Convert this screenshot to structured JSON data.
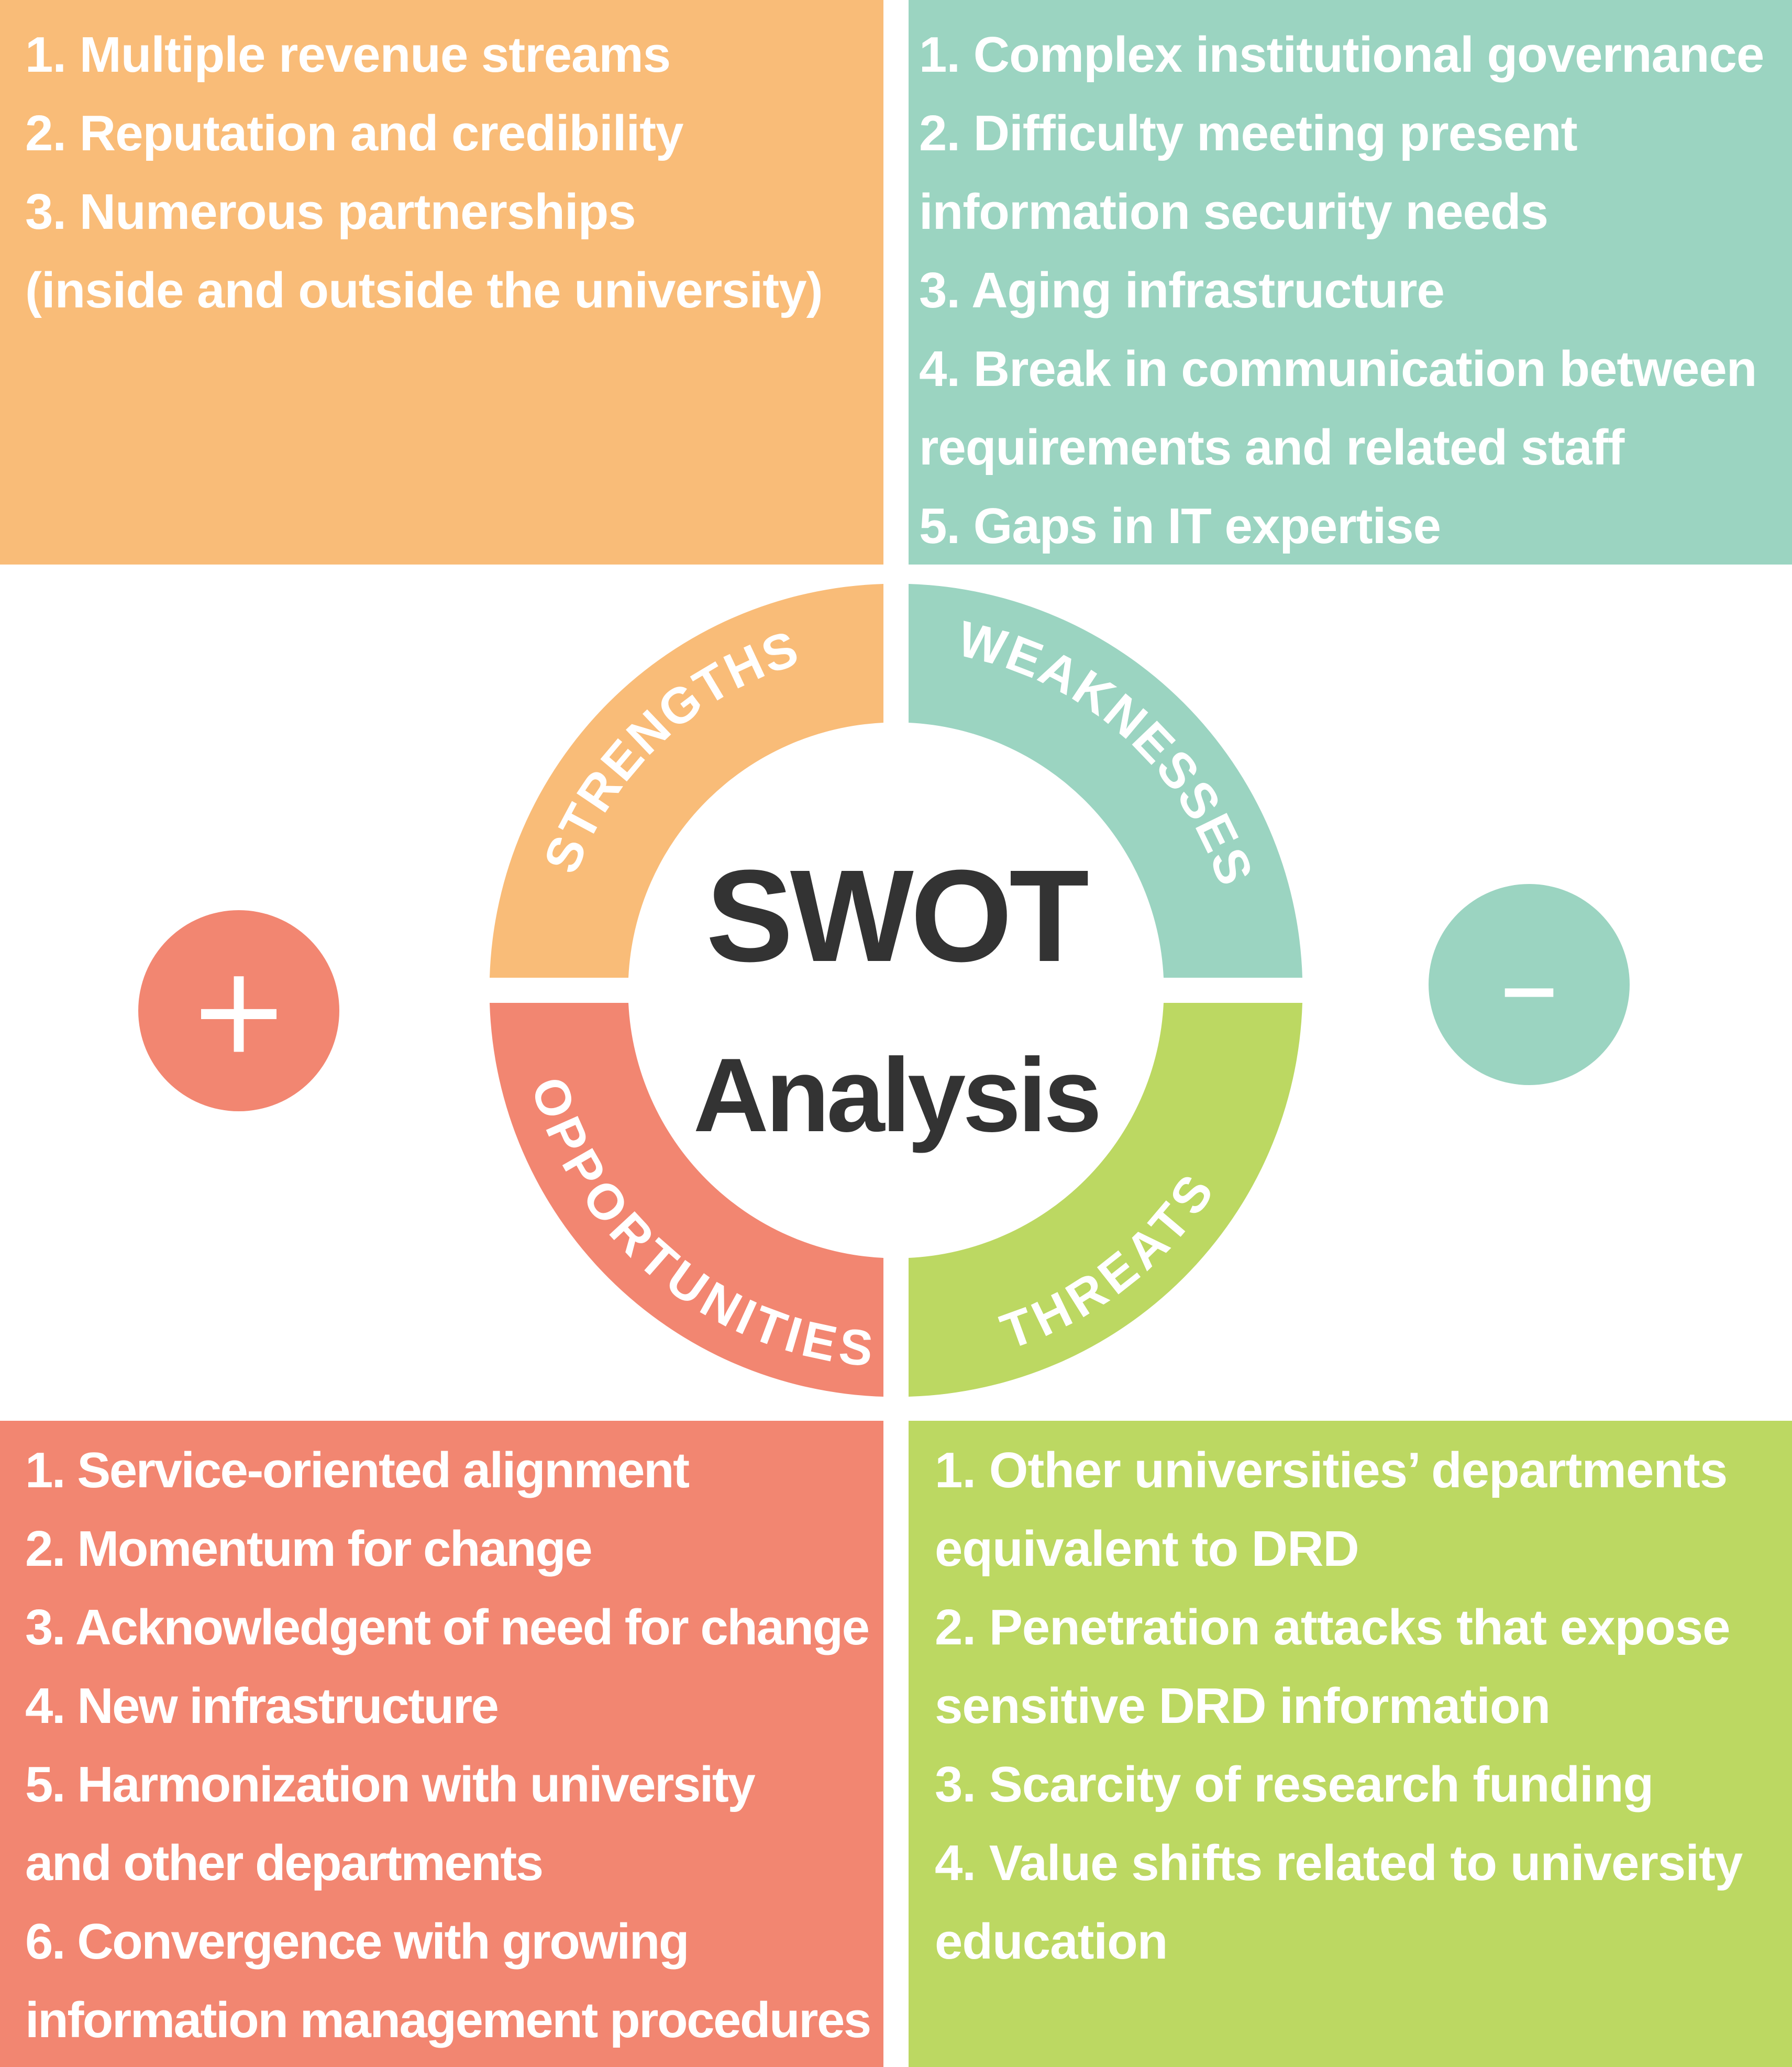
{
  "strengths": {
    "label": "STRENGTHS",
    "color": "#f9bc78",
    "items": [
      "1. Multiple revenue streams",
      "2. Reputation and credibility",
      "3. Numerous partnerships",
      "(inside and outside the university)"
    ]
  },
  "weaknesses": {
    "label": "WEAKNESSES",
    "color": "#9bd4c1",
    "items": [
      "1. Complex institutional governance",
      "2. Difficulty meeting present",
      "information security needs",
      "3. Aging infrastructure",
      "4. Break in communication between",
      "requirements and related staff",
      "5. Gaps in IT expertise"
    ]
  },
  "opportunities": {
    "label": "OPPORTUNITIES",
    "color": "#f28671",
    "items": [
      "1. Service-oriented alignment",
      "2. Momentum for change",
      "3. Acknowledgent of need for change",
      "4. New infrastructure",
      "5. Harmonization with university",
      "and other departments",
      "6. Convergence with growing",
      "information management procedures"
    ]
  },
  "threats": {
    "label": "THREATS",
    "color": "#bcd862",
    "items": [
      "1. Other universities’ departments",
      "equivalent to DRD",
      "2. Penetration attacks that expose",
      "sensitive DRD information",
      "3. Scarcity of research funding",
      "4. Value shifts related to university",
      "education"
    ]
  },
  "center": {
    "title": "SWOT",
    "subtitle": "Analysis",
    "text_color": "#333333"
  },
  "plus_badge": {
    "symbol": "+",
    "color": "#f28671"
  },
  "minus_badge": {
    "symbol": "–",
    "color": "#9bd4c1"
  }
}
